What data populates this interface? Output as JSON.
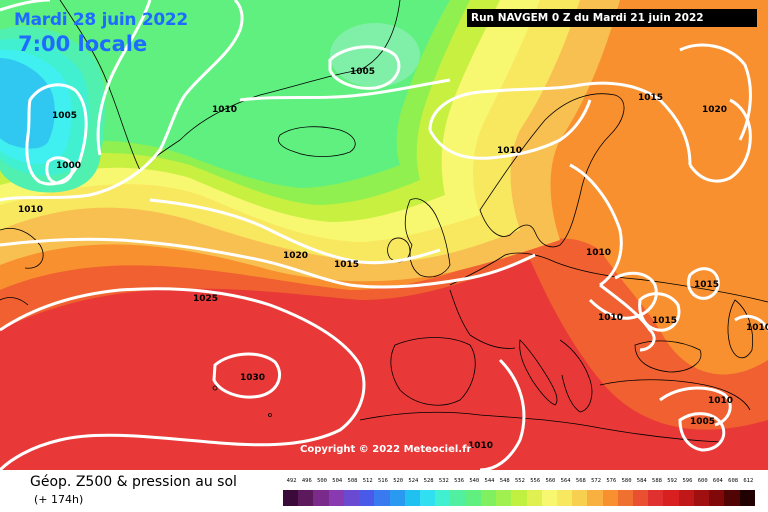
{
  "header": {
    "date": "Mardi 28 juin 2022",
    "time": "7:00 locale",
    "run_info": "Run NAVGEM 0 Z du Mardi 21 juin 2022"
  },
  "copyright": "Copyright © 2022 Meteociel.fr",
  "legend": {
    "title": "Géop. Z500 & pression au sol",
    "subtitle": "(+ 174h)",
    "scale_values": [
      "492",
      "496",
      "500",
      "504",
      "508",
      "512",
      "516",
      "520",
      "524",
      "528",
      "532",
      "536",
      "540",
      "544",
      "548",
      "552",
      "556",
      "560",
      "564",
      "568",
      "572",
      "576",
      "580",
      "584",
      "588",
      "592",
      "596",
      "600",
      "604",
      "608",
      "612"
    ],
    "scale_colors": [
      "#3a0a3a",
      "#5c1a5c",
      "#7a2a8a",
      "#8a3ab0",
      "#6a4ad0",
      "#4a5ae8",
      "#3a7af0",
      "#2a9af0",
      "#20c0f0",
      "#30e0f0",
      "#40f0d0",
      "#50f0a0",
      "#60f080",
      "#80f060",
      "#a0f050",
      "#c0f040",
      "#e0f050",
      "#f8f870",
      "#f8e860",
      "#f8d050",
      "#f8b040",
      "#f89030",
      "#f07030",
      "#e85030",
      "#e03030",
      "#d82020",
      "#c01818",
      "#a01010",
      "#800808",
      "#500404",
      "#200000"
    ]
  },
  "isobar_labels": [
    {
      "text": "1005",
      "id": "1005-greenland-icecap"
    },
    {
      "text": "1005",
      "id": "1005-west-greenland"
    },
    {
      "text": "1000",
      "id": "1000-west-greenland"
    },
    {
      "text": "1010",
      "id": "1010-greenland-south"
    },
    {
      "text": "1010",
      "id": "1010-labrador"
    },
    {
      "text": "1010",
      "id": "1010-norwegian-sea"
    },
    {
      "text": "1015",
      "id": "1015-scandinavia"
    },
    {
      "text": "1020",
      "id": "1020-russia"
    },
    {
      "text": "1020",
      "id": "1020-atlantic"
    },
    {
      "text": "1015",
      "id": "1015-atlantic"
    },
    {
      "text": "1025",
      "id": "1025-atlantic"
    },
    {
      "text": "1030",
      "id": "1030-azores"
    },
    {
      "text": "1010",
      "id": "1010-central-europe"
    },
    {
      "text": "1015",
      "id": "1015-ukraine"
    },
    {
      "text": "1010",
      "id": "1010-balkans"
    },
    {
      "text": "1015",
      "id": "1015-black-sea"
    },
    {
      "text": "1010",
      "id": "1010-caspian"
    },
    {
      "text": "1010",
      "id": "1010-turkey"
    },
    {
      "text": "1005",
      "id": "1005-middle-east"
    },
    {
      "text": "1010",
      "id": "1010-north-africa"
    }
  ],
  "colors": {
    "cold_blue": "#40f0f0",
    "green": "#60f080",
    "yellow": "#f8f870",
    "orange": "#f89030",
    "red": "#e83030",
    "isobar": "#ffffff",
    "coastline": "#000000"
  }
}
